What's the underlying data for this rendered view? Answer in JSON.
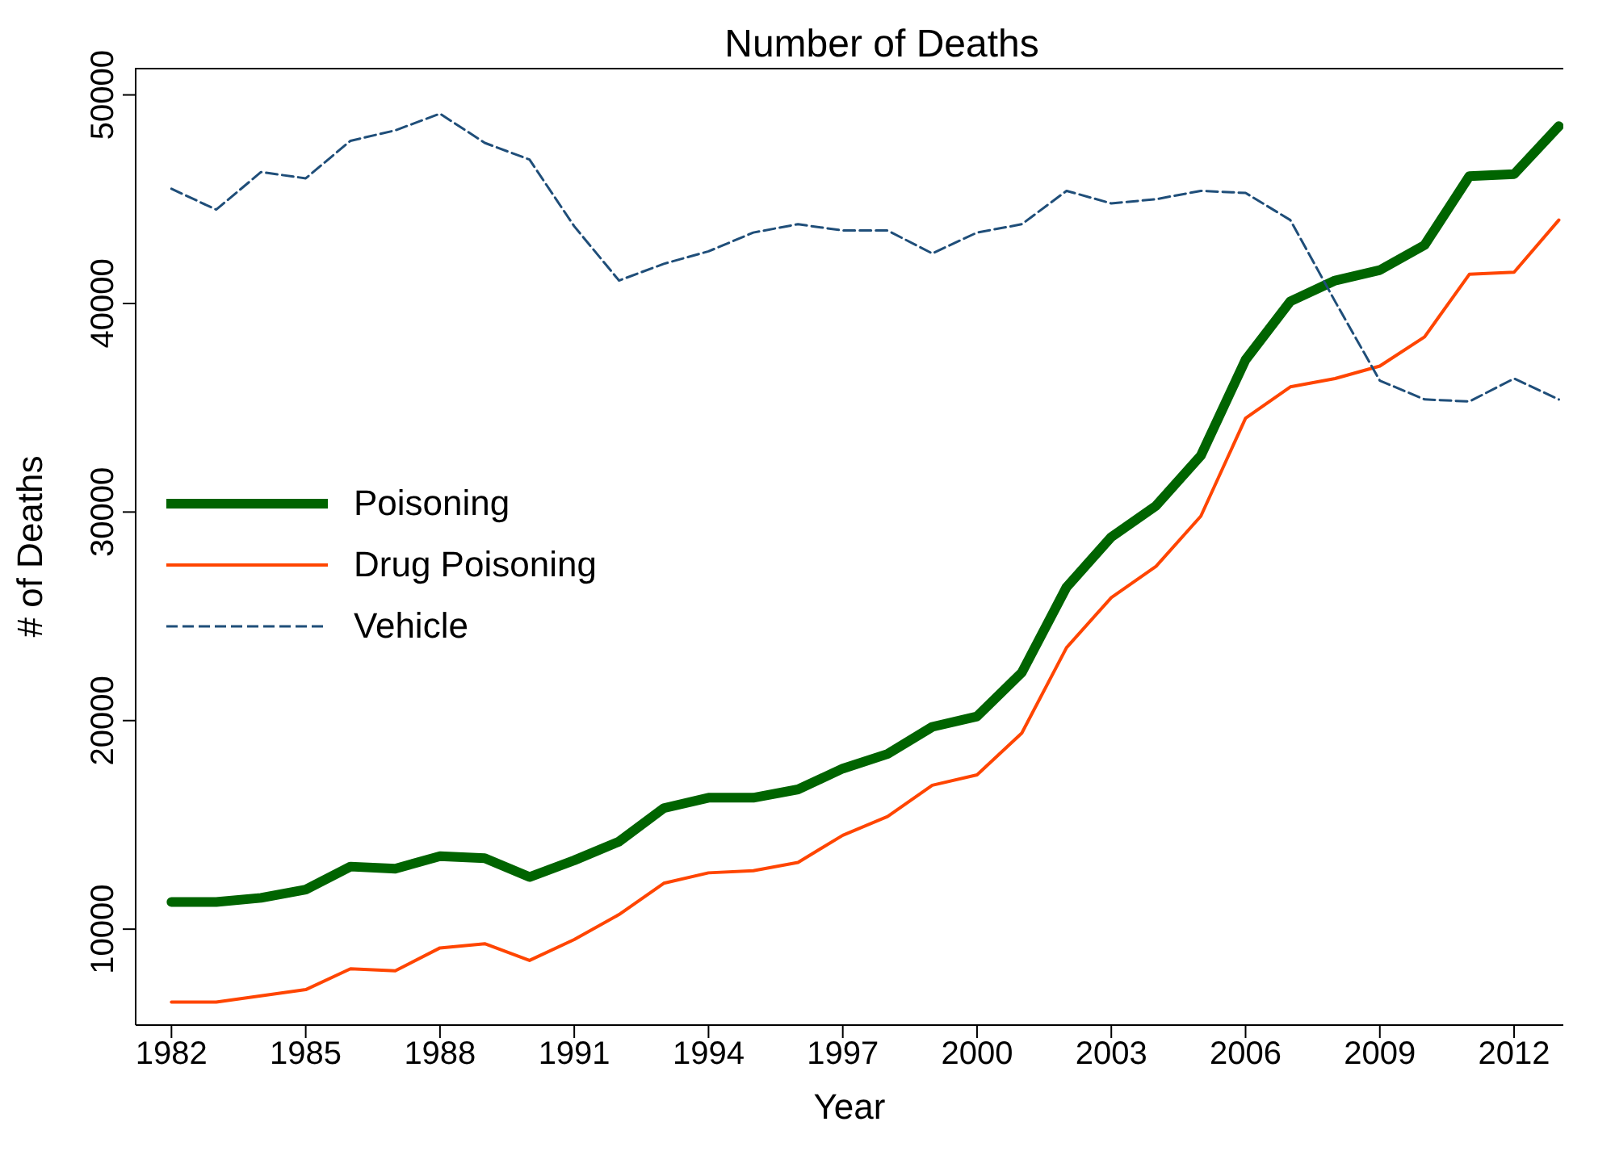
{
  "chart_data": {
    "type": "line",
    "title": "Number of Deaths",
    "xlabel": "Year",
    "ylabel": "# of Deaths",
    "x": [
      1982,
      1983,
      1984,
      1985,
      1986,
      1987,
      1988,
      1989,
      1990,
      1991,
      1992,
      1993,
      1994,
      1995,
      1996,
      1997,
      1998,
      1999,
      2000,
      2001,
      2002,
      2003,
      2004,
      2005,
      2006,
      2007,
      2008,
      2009,
      2010,
      2011,
      2012,
      2013
    ],
    "series": [
      {
        "name": "Poisoning",
        "color": "#006400",
        "line_style": "solid",
        "values": [
          11300,
          11300,
          11500,
          11900,
          13000,
          12900,
          13500,
          13400,
          12500,
          13300,
          14200,
          15800,
          16300,
          16300,
          16700,
          17700,
          18400,
          19700,
          20200,
          22300,
          26400,
          28800,
          30300,
          32700,
          37300,
          40100,
          41100,
          41600,
          42800,
          46100,
          46200,
          48500
        ]
      },
      {
        "name": "Drug Poisoning",
        "color": "#ff4500",
        "line_style": "solid",
        "values": [
          6500,
          6500,
          6800,
          7100,
          8100,
          8000,
          9100,
          9300,
          8500,
          9500,
          10700,
          12200,
          12700,
          12800,
          13200,
          14500,
          15400,
          16900,
          17400,
          19400,
          23500,
          25900,
          27400,
          29800,
          34500,
          36000,
          36400,
          37000,
          38400,
          41400,
          41500,
          44000
        ]
      },
      {
        "name": "Vehicle",
        "color": "#1f4e79",
        "line_style": "dashed",
        "values": [
          45500,
          44500,
          46300,
          46000,
          47800,
          48300,
          49100,
          47700,
          46900,
          43700,
          41100,
          41900,
          42500,
          43400,
          43800,
          43500,
          43500,
          42400,
          43400,
          43800,
          45400,
          44800,
          45000,
          45400,
          45300,
          44000,
          40100,
          36300,
          35400,
          35300,
          36400,
          35400
        ]
      }
    ],
    "xlim": [
      1981.2,
      2013.1
    ],
    "xticks": [
      1982,
      1985,
      1988,
      1991,
      1994,
      1997,
      2000,
      2003,
      2006,
      2009,
      2012
    ],
    "ylim": [
      5400,
      51300
    ],
    "yticks": [
      10000,
      20000,
      30000,
      40000,
      50000
    ],
    "grid": false,
    "legend": "left",
    "marker": "none"
  }
}
